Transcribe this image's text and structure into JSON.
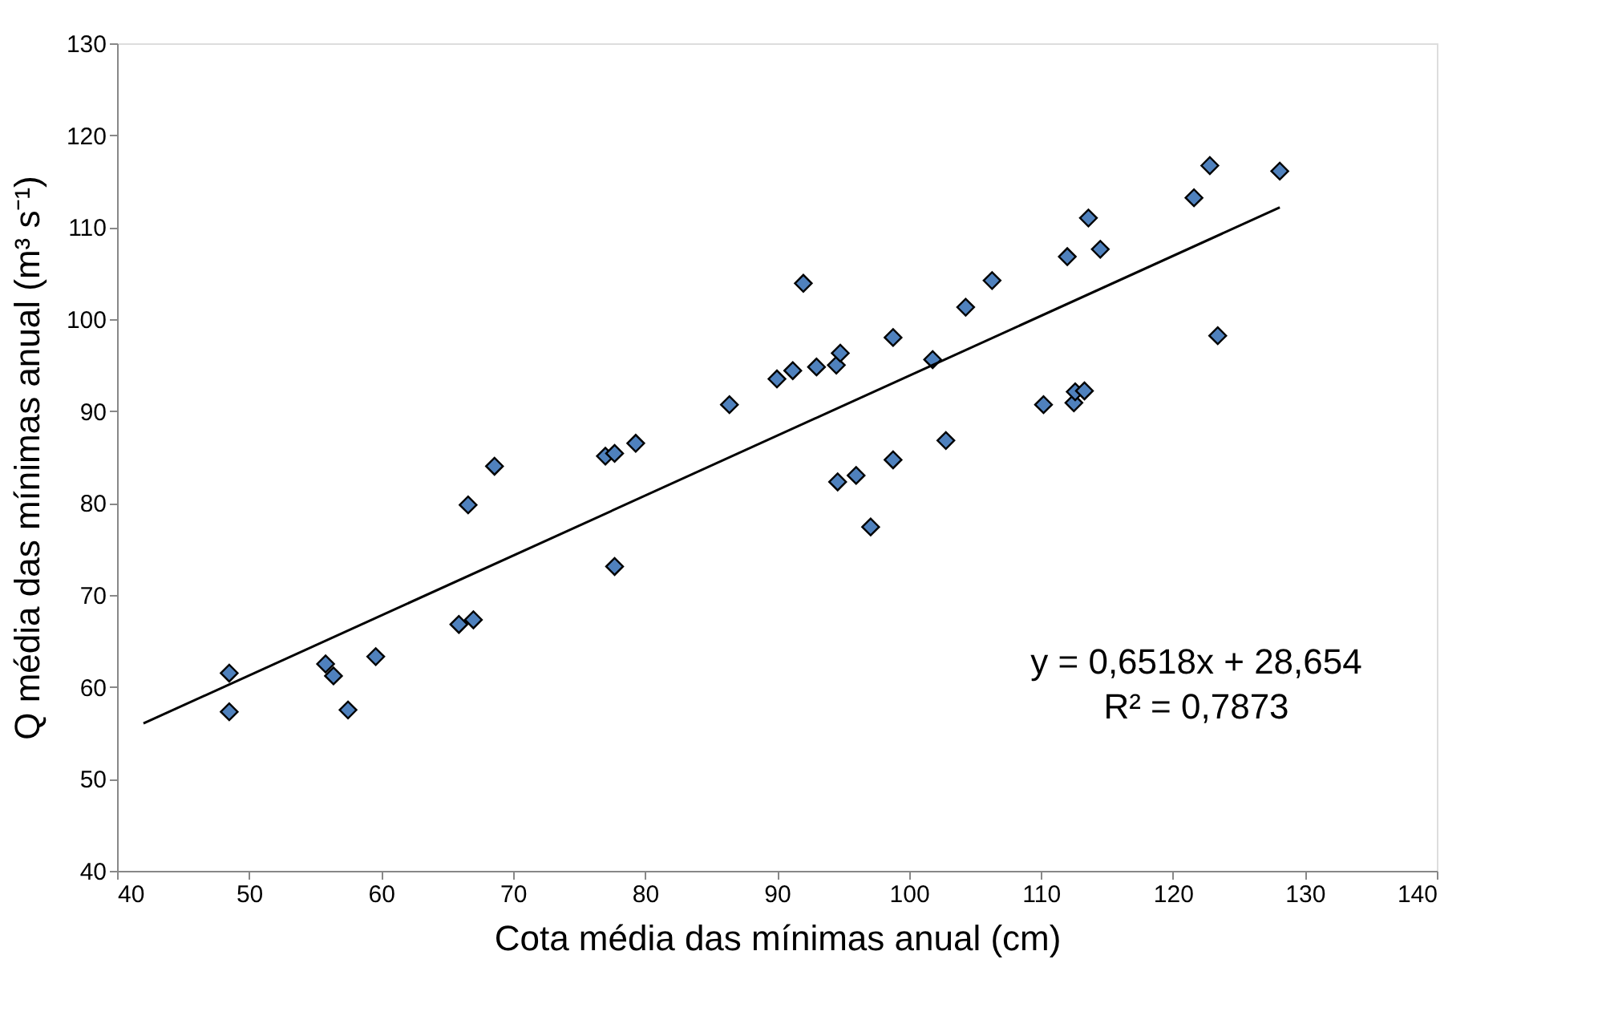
{
  "chart_data": {
    "type": "scatter",
    "xlabel": "Cota média das mínimas anual (cm)",
    "ylabel": "Q média das mínimas anual (m³ s⁻¹)",
    "xlim": [
      40,
      140
    ],
    "xticks": [
      40,
      50,
      60,
      70,
      80,
      90,
      100,
      110,
      120,
      130,
      140
    ],
    "ylim": [
      40,
      130
    ],
    "yticks": [
      40,
      50,
      60,
      70,
      80,
      90,
      100,
      110,
      120,
      130
    ],
    "grid": false,
    "marker": "diamond",
    "series": [
      {
        "color": "#4f81bd",
        "x": [
          48.5,
          48.5,
          55.8,
          56.4,
          57.5,
          59.6,
          65.9,
          67.0,
          66.6,
          68.6,
          77.0,
          77.7,
          77.7,
          79.3,
          86.4,
          90.0,
          91.2,
          92.0,
          93.0,
          94.5,
          94.8,
          94.6,
          96.0,
          97.1,
          98.8,
          98.8,
          101.8,
          102.8,
          104.3,
          106.3,
          110.2,
          112.0,
          112.5,
          112.6,
          113.3,
          113.6,
          114.5,
          121.6,
          122.8,
          123.4,
          128.1
        ],
        "values": [
          61.5,
          57.3,
          62.5,
          61.2,
          57.5,
          63.3,
          66.8,
          67.3,
          79.8,
          84.0,
          85.1,
          85.4,
          73.1,
          86.5,
          90.7,
          93.5,
          94.4,
          103.9,
          94.8,
          95.0,
          96.3,
          82.3,
          83.0,
          77.4,
          98.0,
          84.7,
          95.6,
          86.8,
          101.3,
          104.2,
          90.7,
          106.8,
          90.9,
          92.1,
          92.2,
          111.0,
          107.6,
          113.2,
          116.7,
          98.2,
          116.1
        ]
      },
      {
        "type": "line",
        "color": "#000000",
        "marker": "none",
        "x": [
          42,
          128.1
        ],
        "values": [
          56.03,
          112.15
        ]
      }
    ],
    "annotations": [
      "y = 0,6518x + 28,654",
      "R² = 0,7873"
    ]
  }
}
